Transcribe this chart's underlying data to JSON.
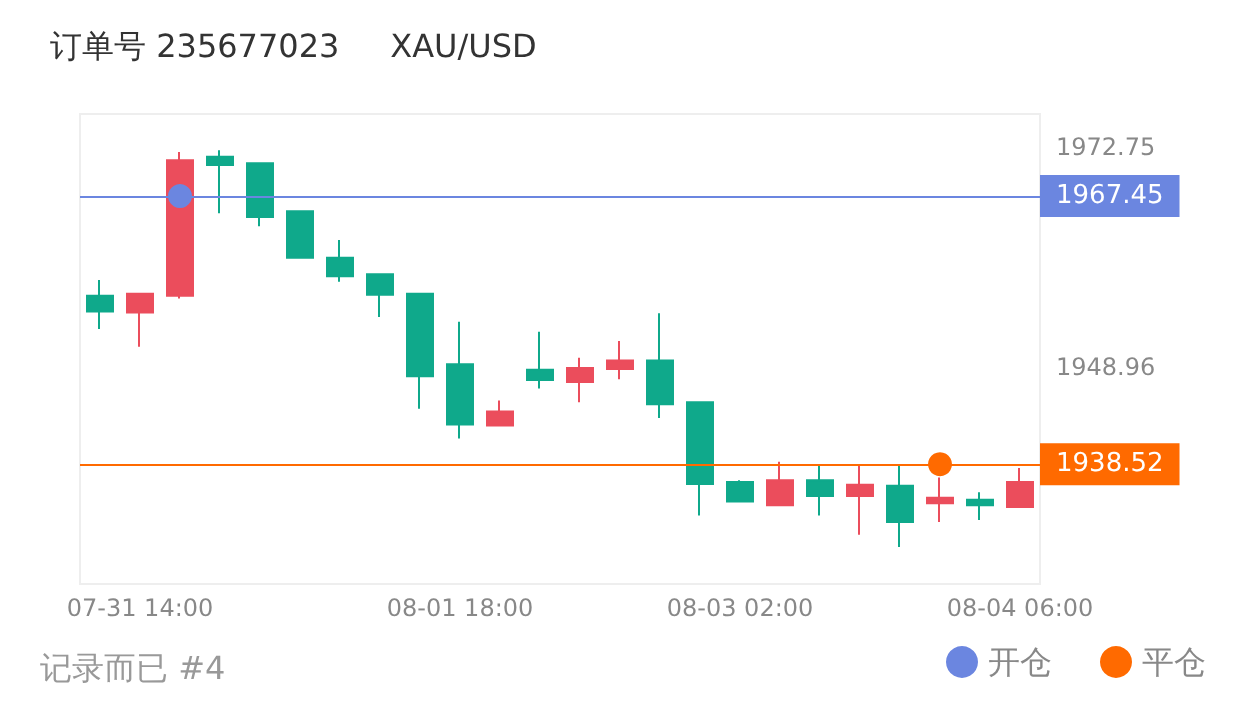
{
  "chart_data": {
    "type": "candlestick",
    "title": "订单号 235677023     XAU/USD",
    "annotations": [
      "记录而已 #4"
    ],
    "categories": [
      null,
      "07-31 14:00",
      null,
      null,
      null,
      null,
      null,
      null,
      null,
      "08-01 18:00",
      null,
      null,
      null,
      null,
      null,
      null,
      "08-03 02:00",
      null,
      null,
      null,
      null,
      null,
      null,
      "08-04 06:00"
    ],
    "ohlc": [
      [
        1955.0,
        1958.4,
        1953.1,
        1956.7
      ],
      [
        1956.9,
        1956.9,
        1951.2,
        1954.9
      ],
      [
        1971.3,
        1972.2,
        1956.4,
        1956.7
      ],
      [
        1970.8,
        1972.4,
        1965.6,
        1971.7
      ],
      [
        1965.2,
        1971.0,
        1964.2,
        1971.0
      ],
      [
        1960.8,
        1965.8,
        1960.8,
        1965.8
      ],
      [
        1958.8,
        1962.7,
        1958.2,
        1960.8
      ],
      [
        1956.8,
        1959.0,
        1954.4,
        1959.0
      ],
      [
        1948.0,
        1956.9,
        1944.5,
        1956.9
      ],
      [
        1942.8,
        1953.9,
        1941.3,
        1949.3
      ],
      [
        1944.2,
        1945.4,
        1942.7,
        1942.7
      ],
      [
        1947.6,
        1952.8,
        1946.7,
        1948.7
      ],
      [
        1948.9,
        1950.0,
        1945.2,
        1947.4
      ],
      [
        1949.7,
        1951.8,
        1947.7,
        1948.8
      ],
      [
        1945.0,
        1954.8,
        1943.5,
        1949.7
      ],
      [
        1936.4,
        1945.2,
        1933.0,
        1945.2
      ],
      [
        1934.5,
        1936.8,
        1934.5,
        1936.6
      ],
      [
        1936.8,
        1938.8,
        1934.1,
        1934.1
      ],
      [
        1935.1,
        1938.4,
        1933.0,
        1936.8
      ],
      [
        1936.3,
        1938.5,
        1930.9,
        1935.1
      ],
      [
        1932.3,
        1938.5,
        1929.6,
        1936.2
      ],
      [
        1934.9,
        1937.1,
        1932.3,
        1934.3
      ],
      [
        1934.1,
        1935.5,
        1932.5,
        1934.7
      ],
      [
        1936.6,
        1938.1,
        1933.9,
        1933.9
      ]
    ],
    "colors": [
      "#0fa98b",
      "#eb4d5c",
      "#eb4d5c",
      "#0fa98b",
      "#0fa98b",
      "#0fa98b",
      "#0fa98b",
      "#0fa98b",
      "#0fa98b",
      "#0fa98b",
      "#eb4d5c",
      "#0fa98b",
      "#eb4d5c",
      "#eb4d5c",
      "#0fa98b",
      "#0fa98b",
      "#0fa98b",
      "#eb4d5c",
      "#0fa98b",
      "#eb4d5c",
      "#0fa98b",
      "#eb4d5c",
      "#0fa98b",
      "#eb4d5c"
    ],
    "series": [
      {
        "type": "scatter",
        "name": "开仓",
        "color": "#6b86e0",
        "values": [
          null,
          null,
          1967.45,
          null,
          null,
          null,
          null,
          null,
          null,
          null,
          null,
          null,
          null,
          null,
          null,
          null,
          null,
          null,
          null,
          null,
          null,
          null,
          null,
          null
        ]
      },
      {
        "type": "scatter",
        "name": "平仓",
        "color": "#ff6a00",
        "values": [
          null,
          null,
          null,
          null,
          null,
          null,
          null,
          null,
          null,
          null,
          null,
          null,
          null,
          null,
          null,
          null,
          null,
          null,
          null,
          null,
          null,
          1938.52,
          null,
          null
        ]
      }
    ],
    "ylim": [
      1925.6,
      1976.3
    ],
    "yticks": [
      1972.75,
      1948.96
    ],
    "ref_lines": [
      {
        "axis": "y",
        "value": 1967.45,
        "label": "1967.45",
        "color": "#6b86e0"
      },
      {
        "axis": "y",
        "value": 1938.52,
        "label": "1938.52",
        "color": "#ff6a00"
      }
    ],
    "marker": "circle",
    "legend": "bottom right",
    "grid": false
  }
}
